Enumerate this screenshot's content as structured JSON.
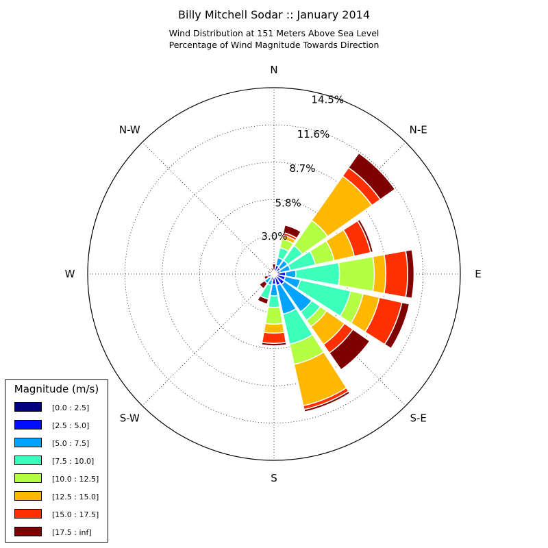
{
  "title": "Billy Mitchell Sodar :: January 2014",
  "subtitle_line1": "Wind Distribution at 151 Meters Above Sea Level",
  "subtitle_line2": "Percentage of Wind Magnitude Towards Direction",
  "chart_data": {
    "type": "windrose",
    "directions": [
      "N",
      "NNE",
      "NE",
      "ENE",
      "E",
      "ESE",
      "SE",
      "SSE",
      "S",
      "SSW",
      "SW",
      "WSW",
      "W",
      "WNW",
      "NW",
      "NNW"
    ],
    "compass_labels": [
      "N",
      "N-E",
      "E",
      "S-E",
      "S",
      "S-W",
      "W",
      "N-W"
    ],
    "radial_tick_labels": [
      "3.0%",
      "5.8%",
      "8.7%",
      "11.6%",
      "14.5%"
    ],
    "radial_ticks": [
      3.0,
      5.8,
      8.7,
      11.6,
      14.5
    ],
    "rmax": 14.5,
    "grid": true,
    "legend_title": "Magnitude (m/s)",
    "legend_position": "bottom-left",
    "bins": [
      {
        "label": "[0.0 : 2.5]",
        "color": "#00007f"
      },
      {
        "label": "[2.5 : 5.0]",
        "color": "#0010ff"
      },
      {
        "label": "[5.0 : 7.5]",
        "color": "#00a4ff"
      },
      {
        "label": "[7.5 : 10.0]",
        "color": "#3bffbb"
      },
      {
        "label": "[10.0 : 12.5]",
        "color": "#b2ff43"
      },
      {
        "label": "[12.5 : 15.0]",
        "color": "#ffb800"
      },
      {
        "label": "[15.0 : 17.5]",
        "color": "#ff3000"
      },
      {
        "label": "[17.5 : inf]",
        "color": "#7f0000"
      }
    ],
    "cumulative": [
      [
        0.1,
        0.8,
        0.8,
        0.8,
        0.8,
        0.8,
        0.8,
        0.8
      ],
      [
        0.1,
        0.7,
        1.3,
        2.1,
        2.8,
        3.1,
        3.3,
        3.9
      ],
      [
        0.1,
        0.6,
        1.3,
        2.7,
        5.1,
        9.3,
        10.1,
        11.5
      ],
      [
        0.1,
        0.5,
        1.3,
        3.3,
        4.8,
        6.4,
        7.7,
        7.9
      ],
      [
        0.1,
        0.9,
        1.7,
        5.1,
        7.8,
        8.7,
        10.4,
        10.9
      ],
      [
        0.1,
        0.9,
        2.1,
        6.1,
        7.1,
        8.4,
        10.2,
        10.8
      ],
      [
        0.1,
        1.0,
        3.6,
        4.4,
        5.0,
        6.7,
        7.5,
        9.1
      ],
      [
        0.1,
        0.9,
        3.2,
        5.6,
        7.2,
        10.5,
        10.8,
        11.0
      ],
      [
        0.1,
        0.8,
        1.7,
        2.6,
        3.9,
        4.6,
        5.4,
        5.6
      ],
      [
        0.1,
        0.5,
        0.9,
        2.0,
        2.4,
        2.4,
        2.4,
        2.4
      ],
      [
        0.1,
        0.4,
        0.9,
        1.4,
        1.4,
        1.4,
        1.4,
        1.4
      ],
      [
        0.1,
        0.5,
        0.8,
        0.8,
        0.8,
        0.8,
        0.8,
        0.8
      ],
      [
        0.1,
        0.2,
        0.2,
        0.2,
        0.2,
        0.2,
        0.2,
        0.2
      ],
      [
        0.1,
        0.1,
        0.1,
        0.1,
        0.1,
        0.1,
        0.1,
        0.5
      ],
      [
        0.1,
        0.1,
        0.1,
        0.1,
        0.1,
        0.1,
        0.1,
        0.1
      ],
      [
        0.1,
        0.5,
        0.5,
        0.5,
        0.5,
        0.5,
        0.5,
        0.5
      ]
    ]
  }
}
